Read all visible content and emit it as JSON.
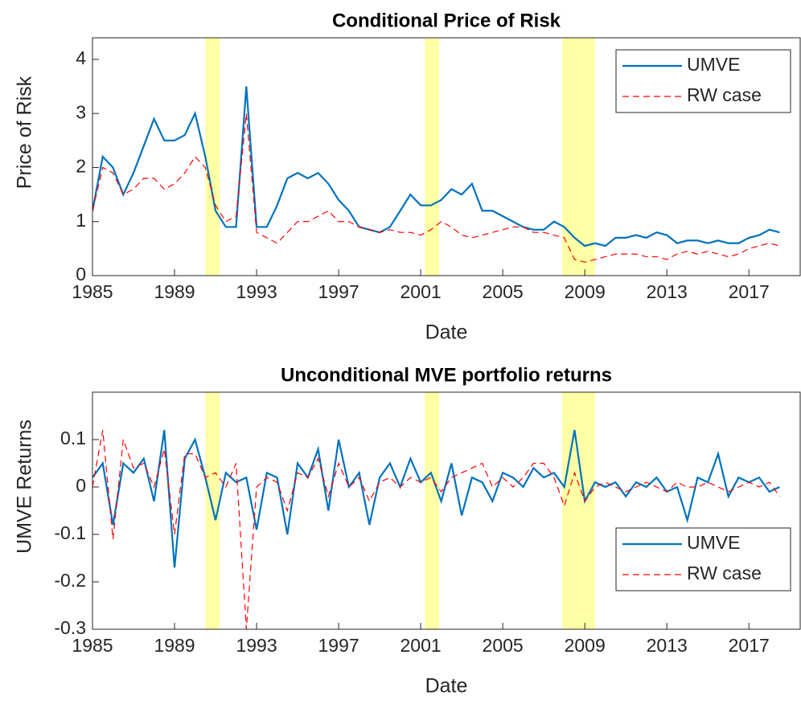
{
  "chart_data": [
    {
      "type": "line",
      "title": "Conditional Price of Risk",
      "x_label": "Date",
      "y_label": "Price of Risk",
      "xlim": [
        1985,
        2019.5
      ],
      "xticks": [
        1985,
        1989,
        1993,
        1997,
        2001,
        2005,
        2009,
        2013,
        2017
      ],
      "ylim": [
        0,
        4.4
      ],
      "yticks": [
        0,
        1,
        2,
        3,
        4
      ],
      "legend": "northeast",
      "shaded_periods": [
        [
          1990.5,
          1991.2
        ],
        [
          2001.2,
          2001.9
        ],
        [
          2007.9,
          2009.5
        ]
      ],
      "shade_color": "#ffff80",
      "x": [
        1985,
        1985.5,
        1986,
        1986.5,
        1987,
        1987.5,
        1988,
        1988.5,
        1989,
        1989.5,
        1990,
        1990.5,
        1991,
        1991.5,
        1992,
        1992.5,
        1993,
        1993.5,
        1994,
        1994.5,
        1995,
        1995.5,
        1996,
        1996.5,
        1997,
        1997.5,
        1998,
        1998.5,
        1999,
        1999.5,
        2000,
        2000.5,
        2001,
        2001.5,
        2002,
        2002.5,
        2003,
        2003.5,
        2004,
        2004.5,
        2005,
        2005.5,
        2006,
        2006.5,
        2007,
        2007.5,
        2008,
        2008.5,
        2009,
        2009.5,
        2010,
        2010.5,
        2011,
        2011.5,
        2012,
        2012.5,
        2013,
        2013.5,
        2014,
        2014.5,
        2015,
        2015.5,
        2016,
        2016.5,
        2017,
        2017.5,
        2018,
        2018.5
      ],
      "series": [
        {
          "name": "UMVE",
          "color": "#0072bd",
          "dashed": false,
          "values": [
            1.2,
            2.2,
            2.0,
            1.5,
            1.9,
            2.4,
            2.9,
            2.5,
            2.5,
            2.6,
            3.0,
            2.2,
            1.2,
            0.9,
            0.9,
            3.5,
            0.9,
            0.9,
            1.3,
            1.8,
            1.9,
            1.8,
            1.9,
            1.7,
            1.4,
            1.2,
            0.9,
            0.85,
            0.8,
            0.9,
            1.2,
            1.5,
            1.3,
            1.3,
            1.4,
            1.6,
            1.5,
            1.7,
            1.2,
            1.2,
            1.1,
            1.0,
            0.9,
            0.85,
            0.85,
            1.0,
            0.9,
            0.7,
            0.55,
            0.6,
            0.55,
            0.7,
            0.7,
            0.75,
            0.7,
            0.8,
            0.75,
            0.6,
            0.65,
            0.65,
            0.6,
            0.65,
            0.6,
            0.6,
            0.7,
            0.75,
            0.85,
            0.8
          ]
        },
        {
          "name": "RW case",
          "color": "#ff0000",
          "dashed": true,
          "values": [
            1.2,
            2.0,
            1.9,
            1.5,
            1.6,
            1.8,
            1.8,
            1.6,
            1.7,
            1.9,
            2.2,
            2.0,
            1.3,
            1.0,
            1.1,
            3.0,
            0.8,
            0.7,
            0.6,
            0.8,
            1.0,
            1.0,
            1.1,
            1.2,
            1.0,
            1.0,
            0.9,
            0.85,
            0.8,
            0.85,
            0.8,
            0.8,
            0.75,
            0.85,
            1.0,
            0.9,
            0.75,
            0.7,
            0.75,
            0.8,
            0.85,
            0.9,
            0.9,
            0.8,
            0.8,
            0.75,
            0.7,
            0.3,
            0.25,
            0.3,
            0.35,
            0.4,
            0.4,
            0.4,
            0.35,
            0.35,
            0.3,
            0.4,
            0.45,
            0.4,
            0.45,
            0.4,
            0.35,
            0.4,
            0.5,
            0.55,
            0.6,
            0.55
          ]
        }
      ]
    },
    {
      "type": "line",
      "title": "Unconditional MVE portfolio returns",
      "x_label": "Date",
      "y_label": "UMVE Returns",
      "xlim": [
        1985,
        2019.5
      ],
      "xticks": [
        1985,
        1989,
        1993,
        1997,
        2001,
        2005,
        2009,
        2013,
        2017
      ],
      "ylim": [
        -0.3,
        0.2
      ],
      "yticks": [
        -0.3,
        -0.2,
        -0.1,
        0,
        0.1
      ],
      "legend": "southeast",
      "shaded_periods": [
        [
          1990.5,
          1991.2
        ],
        [
          2001.2,
          2001.9
        ],
        [
          2007.9,
          2009.5
        ]
      ],
      "shade_color": "#ffff80",
      "x": [
        1985,
        1985.5,
        1986,
        1986.5,
        1987,
        1987.5,
        1988,
        1988.5,
        1989,
        1989.5,
        1990,
        1990.5,
        1991,
        1991.5,
        1992,
        1992.5,
        1993,
        1993.5,
        1994,
        1994.5,
        1995,
        1995.5,
        1996,
        1996.5,
        1997,
        1997.5,
        1998,
        1998.5,
        1999,
        1999.5,
        2000,
        2000.5,
        2001,
        2001.5,
        2002,
        2002.5,
        2003,
        2003.5,
        2004,
        2004.5,
        2005,
        2005.5,
        2006,
        2006.5,
        2007,
        2007.5,
        2008,
        2008.5,
        2009,
        2009.5,
        2010,
        2010.5,
        2011,
        2011.5,
        2012,
        2012.5,
        2013,
        2013.5,
        2014,
        2014.5,
        2015,
        2015.5,
        2016,
        2016.5,
        2017,
        2017.5,
        2018,
        2018.5
      ],
      "series": [
        {
          "name": "UMVE",
          "color": "#0072bd",
          "dashed": false,
          "values": [
            0.02,
            0.05,
            -0.08,
            0.05,
            0.03,
            0.06,
            -0.03,
            0.12,
            -0.17,
            0.06,
            0.1,
            0.02,
            -0.07,
            0.03,
            0.01,
            0.02,
            -0.09,
            0.03,
            0.02,
            -0.1,
            0.05,
            0.02,
            0.08,
            -0.05,
            0.1,
            0.0,
            0.03,
            -0.08,
            0.02,
            0.05,
            0.0,
            0.06,
            0.01,
            0.03,
            -0.03,
            0.05,
            -0.06,
            0.02,
            0.01,
            -0.03,
            0.03,
            0.02,
            0.0,
            0.04,
            0.02,
            0.03,
            0.0,
            0.12,
            -0.03,
            0.01,
            0.0,
            0.01,
            -0.02,
            0.01,
            0.0,
            0.02,
            -0.01,
            0.0,
            -0.07,
            0.02,
            0.01,
            0.07,
            -0.02,
            0.02,
            0.01,
            0.02,
            -0.01,
            0.0
          ]
        },
        {
          "name": "RW case",
          "color": "#ff0000",
          "dashed": true,
          "values": [
            0.0,
            0.12,
            -0.11,
            0.1,
            0.04,
            0.05,
            0.0,
            0.08,
            -0.1,
            0.07,
            0.07,
            0.02,
            0.03,
            0.0,
            0.05,
            -0.3,
            0.0,
            0.02,
            0.01,
            -0.05,
            0.03,
            0.02,
            0.06,
            -0.02,
            0.05,
            0.0,
            0.02,
            -0.03,
            0.01,
            0.02,
            0.0,
            0.02,
            0.01,
            0.02,
            -0.01,
            0.02,
            0.03,
            0.04,
            0.05,
            0.0,
            0.02,
            0.0,
            0.02,
            0.05,
            0.05,
            0.02,
            -0.04,
            0.03,
            -0.03,
            0.0,
            0.01,
            0.0,
            -0.01,
            0.0,
            0.01,
            0.0,
            -0.01,
            0.01,
            0.0,
            0.0,
            0.01,
            0.0,
            -0.01,
            0.0,
            0.01,
            0.0,
            0.01,
            -0.02
          ]
        }
      ]
    }
  ]
}
